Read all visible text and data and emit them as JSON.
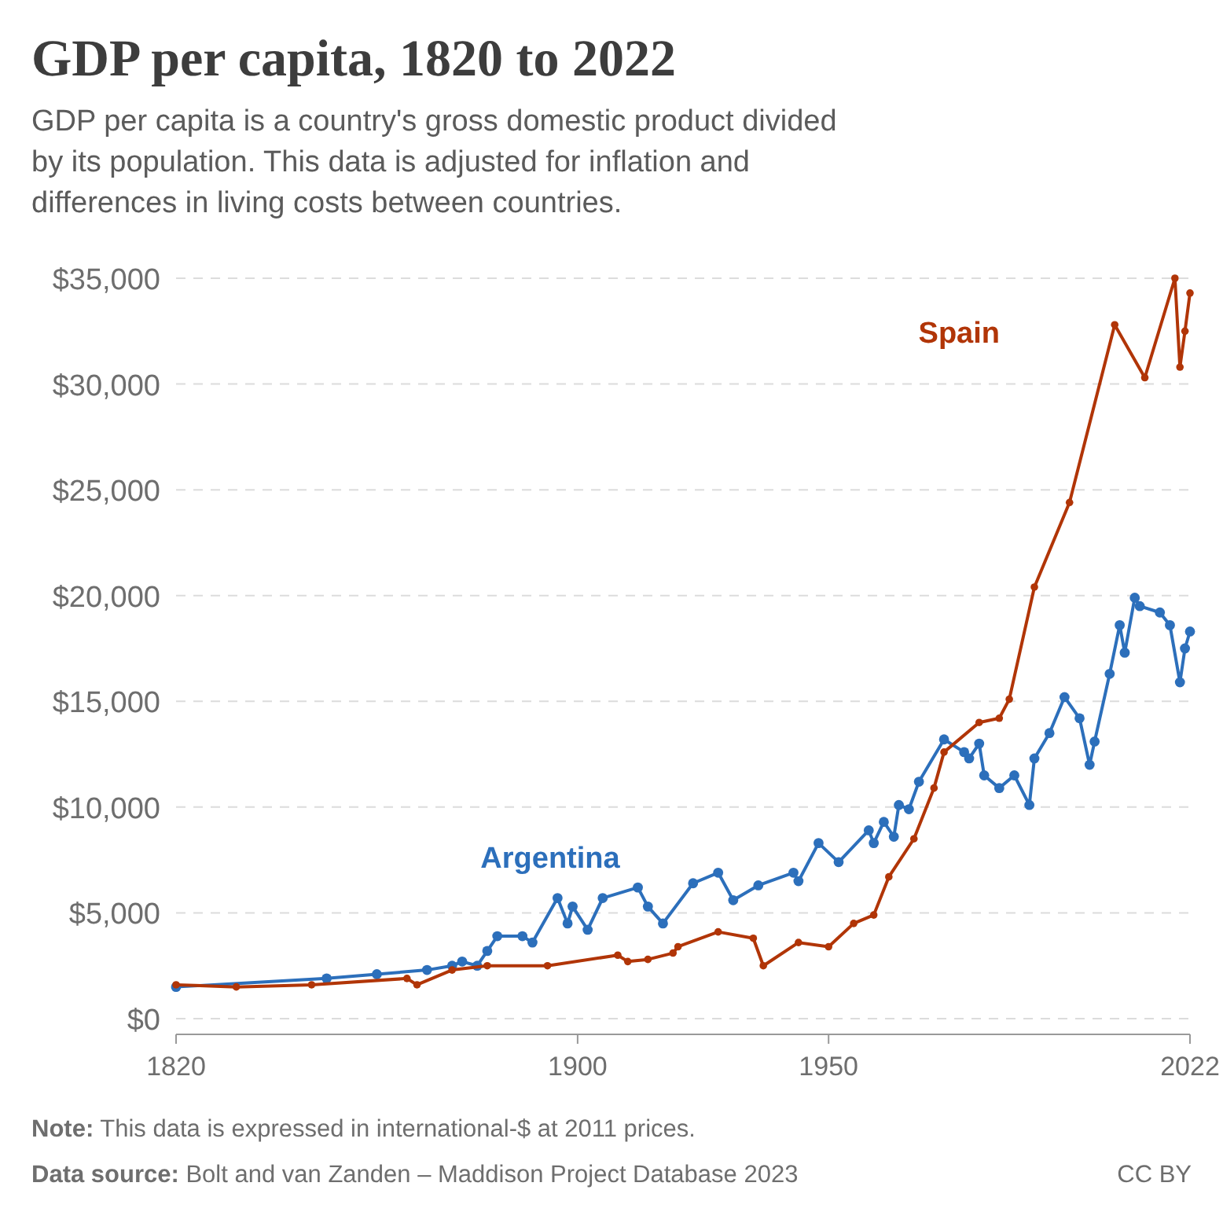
{
  "chart_data": {
    "type": "line",
    "title": "GDP per capita, 1820 to 2022",
    "subtitle": "GDP per capita is a country's gross domestic product divided by its population. This data is adjusted for inflation and differences in living costs between countries.",
    "annotations": [
      "Note: This data is expressed in international-$ at 2011 prices.",
      "Data source: Bolt and van Zanden – Maddison Project Database 2023",
      "CC BY"
    ],
    "xlim": [
      1820,
      2022
    ],
    "xticks": [
      1820,
      1900,
      1950,
      2022
    ],
    "ylim": [
      0,
      35000
    ],
    "yticks": [
      {
        "value": 0,
        "label": "$0"
      },
      {
        "value": 5000,
        "label": "$5,000"
      },
      {
        "value": 10000,
        "label": "$10,000"
      },
      {
        "value": 15000,
        "label": "$15,000"
      },
      {
        "value": 20000,
        "label": "$20,000"
      },
      {
        "value": 25000,
        "label": "$25,000"
      },
      {
        "value": 30000,
        "label": "$30,000"
      },
      {
        "value": 35000,
        "label": "$35,000"
      }
    ],
    "grid": "y",
    "legend": false,
    "marker": "circle",
    "line_style": "solid",
    "series": [
      {
        "name": "Spain",
        "color": "#b13507",
        "x": [
          1820,
          1832,
          1847,
          1866,
          1868,
          1875,
          1882,
          1894,
          1908,
          1910,
          1914,
          1919,
          1920,
          1928,
          1935,
          1937,
          1944,
          1950,
          1955,
          1959,
          1962,
          1967,
          1971,
          1973,
          1980,
          1984,
          1986,
          1991,
          1998,
          2007,
          2013,
          2019,
          2020,
          2021,
          2022
        ],
        "values": [
          1600,
          1500,
          1600,
          1900,
          1600,
          2300,
          2500,
          2500,
          3000,
          2700,
          2800,
          3100,
          3400,
          4100,
          3800,
          2500,
          3600,
          3400,
          4500,
          4900,
          6700,
          8500,
          10900,
          12600,
          14000,
          14200,
          15100,
          20400,
          24400,
          32800,
          30300,
          35000,
          30800,
          32500,
          34300
        ]
      },
      {
        "name": "Argentina",
        "color": "#2c6fbb",
        "x": [
          1820,
          1850,
          1860,
          1870,
          1875,
          1877,
          1880,
          1882,
          1884,
          1889,
          1891,
          1896,
          1898,
          1899,
          1902,
          1905,
          1912,
          1914,
          1917,
          1923,
          1928,
          1931,
          1936,
          1943,
          1944,
          1948,
          1952,
          1958,
          1959,
          1961,
          1963,
          1964,
          1966,
          1968,
          1973,
          1977,
          1978,
          1980,
          1981,
          1984,
          1987,
          1990,
          1991,
          1994,
          1997,
          2000,
          2002,
          2003,
          2006,
          2008,
          2009,
          2011,
          2012,
          2016,
          2018,
          2020,
          2021,
          2022
        ],
        "values": [
          1500,
          1900,
          2100,
          2300,
          2500,
          2700,
          2500,
          3200,
          3900,
          3900,
          3600,
          5700,
          4500,
          5300,
          4200,
          5700,
          6200,
          5300,
          4500,
          6400,
          6900,
          5600,
          6300,
          6900,
          6500,
          8300,
          7400,
          8900,
          8300,
          9300,
          8600,
          10100,
          9900,
          11200,
          13200,
          12600,
          12300,
          13000,
          11500,
          10900,
          11500,
          10100,
          12300,
          13500,
          15200,
          14200,
          12000,
          13100,
          16300,
          18600,
          17300,
          19900,
          19500,
          19200,
          18600,
          15900,
          17500,
          18300
        ]
      }
    ]
  }
}
